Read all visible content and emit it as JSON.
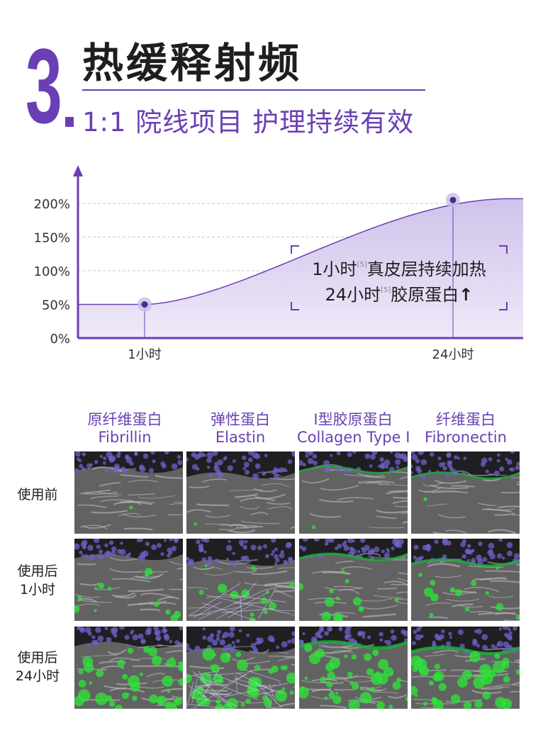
{
  "header": {
    "number": "3",
    "dot": ".",
    "title": "热缓释射频",
    "subtitle": "1:1 院线项目 护理持续有效"
  },
  "colors": {
    "accent": "#6a3fb5",
    "curve_fill": "#d9cdee",
    "collagen_green": "#2fe03a",
    "nuclei_purple": "#6f62c8"
  },
  "chart_data": {
    "type": "area",
    "title": "",
    "xlabel": "",
    "ylabel": "",
    "ylim": [
      0,
      200
    ],
    "yticks": [
      0,
      50,
      100,
      150,
      200
    ],
    "ytick_labels": [
      "0%",
      "50%",
      "100%",
      "150%",
      "200%"
    ],
    "x_labels": [
      "1小时",
      "24小时"
    ],
    "points": [
      {
        "x": "1小时",
        "y": 50
      },
      {
        "x": "24小时",
        "y": 205
      }
    ],
    "curve": "sigmoid",
    "grid": true,
    "annotation": {
      "line1_before": "1小时",
      "line1_ref": "[5]",
      "line1_after": "真皮层持续加热",
      "line2_before": "24小时",
      "line2_ref": "[5]",
      "line2_after": "胶原蛋白",
      "line2_arrow": "↑"
    }
  },
  "grid": {
    "columns": [
      {
        "cn": "原纤维蛋白",
        "en": "Fibrillin"
      },
      {
        "cn": "弹性蛋白",
        "en": "Elastin"
      },
      {
        "cn": "I型胶原蛋白",
        "en": "Collagen Type I"
      },
      {
        "cn": "纤维蛋白",
        "en": "Fibronectin"
      }
    ],
    "rows": [
      {
        "line1": "使用前",
        "line2": ""
      },
      {
        "line1": "使用后",
        "line2": "1小时"
      },
      {
        "line1": "使用后",
        "line2": "24小时"
      }
    ],
    "green_density": [
      0.02,
      0.22,
      0.65
    ]
  }
}
